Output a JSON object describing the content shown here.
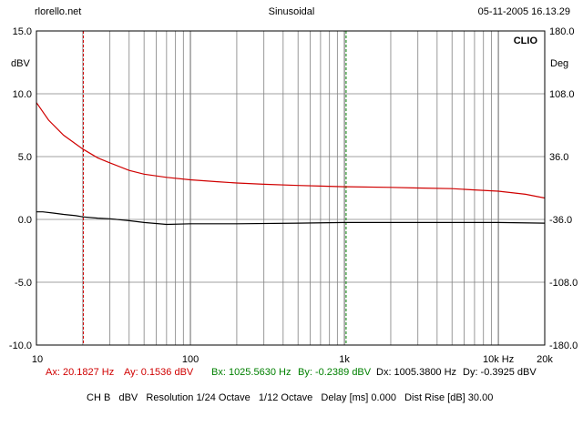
{
  "header": {
    "left": "rlorello.net",
    "center": "Sinusoidal",
    "right": "05-11-2005 16.13.29"
  },
  "colors": {
    "grid": "#808080",
    "magnitude": "#d00000",
    "phase": "#000000",
    "cursor_a": "#d00000",
    "cursor_b": "#008000",
    "delta": "#000000"
  },
  "chart_data": {
    "type": "line",
    "title": "CLIO",
    "x_scale": "log",
    "xlim": [
      10,
      20000
    ],
    "x_ticks": [
      {
        "value": 10,
        "label": "10"
      },
      {
        "value": 100,
        "label": "100"
      },
      {
        "value": 1000,
        "label": "1k"
      },
      {
        "value": 10000,
        "label": "10k Hz"
      },
      {
        "value": 20000,
        "label": "20k"
      }
    ],
    "ylabel_left": "dBV",
    "ylim_left": [
      -10,
      15
    ],
    "y_ticks_left": [
      "15.0",
      "10.0",
      "5.0",
      "0.0",
      "-5.0",
      "-10.0"
    ],
    "ylabel_right": "Deg",
    "ylim_right": [
      -180,
      180
    ],
    "y_ticks_right": [
      "180.0",
      "108.0",
      "36.0",
      "-36.0",
      "-108.0",
      "-180.0"
    ],
    "grid": true,
    "series": [
      {
        "axis": "left",
        "points": [
          [
            10,
            9.3
          ],
          [
            12,
            7.9
          ],
          [
            15,
            6.7
          ],
          [
            20,
            5.6
          ],
          [
            25,
            4.9
          ],
          [
            30,
            4.5
          ],
          [
            40,
            3.9
          ],
          [
            50,
            3.6
          ],
          [
            70,
            3.35
          ],
          [
            100,
            3.15
          ],
          [
            150,
            3.0
          ],
          [
            200,
            2.9
          ],
          [
            300,
            2.8
          ],
          [
            500,
            2.7
          ],
          [
            700,
            2.65
          ],
          [
            1000,
            2.6
          ],
          [
            2000,
            2.55
          ],
          [
            3000,
            2.5
          ],
          [
            5000,
            2.45
          ],
          [
            7000,
            2.35
          ],
          [
            10000,
            2.25
          ],
          [
            15000,
            2.0
          ],
          [
            20000,
            1.7
          ]
        ]
      },
      {
        "axis": "left",
        "points": [
          [
            10,
            0.6
          ],
          [
            11,
            0.6
          ],
          [
            13,
            0.5
          ],
          [
            15,
            0.4
          ],
          [
            18,
            0.3
          ],
          [
            20,
            0.2
          ],
          [
            25,
            0.1
          ],
          [
            30,
            0.05
          ],
          [
            40,
            -0.1
          ],
          [
            50,
            -0.25
          ],
          [
            70,
            -0.4
          ],
          [
            100,
            -0.35
          ],
          [
            200,
            -0.35
          ],
          [
            500,
            -0.3
          ],
          [
            1000,
            -0.25
          ],
          [
            2000,
            -0.25
          ],
          [
            5000,
            -0.25
          ],
          [
            10000,
            -0.25
          ],
          [
            20000,
            -0.3
          ]
        ]
      }
    ],
    "cursors": [
      {
        "id": "A",
        "x": 20.1827
      },
      {
        "id": "B",
        "x": 1025.563
      }
    ]
  },
  "cursor_readout": {
    "ax": "Ax: 20.1827 Hz",
    "ay": "Ay: 0.1536 dBV",
    "bx": "Bx: 1025.5630 Hz",
    "by": "By: -0.2389 dBV",
    "dx": "Dx: 1005.3800 Hz",
    "dy": "Dy: -0.3925 dBV"
  },
  "footer": "CH B   dBV   Resolution 1/24 Octave   1/12 Octave   Delay [ms] 0.000   Dist Rise [dB] 30.00"
}
